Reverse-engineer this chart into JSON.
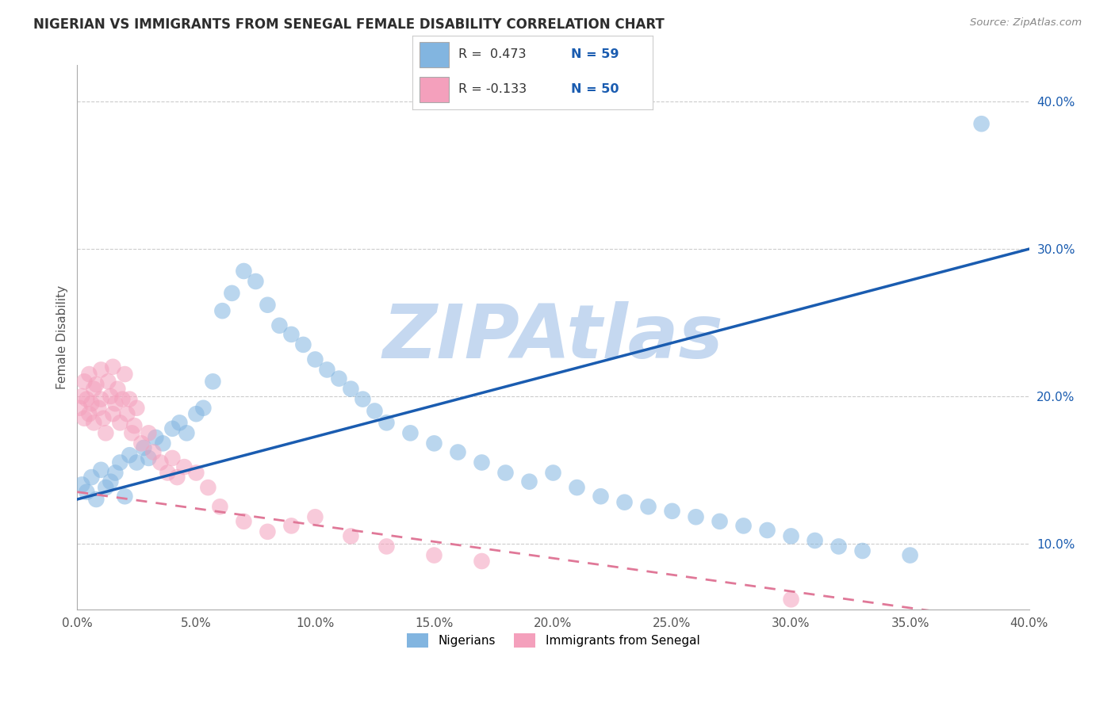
{
  "title": "NIGERIAN VS IMMIGRANTS FROM SENEGAL FEMALE DISABILITY CORRELATION CHART",
  "source_text": "Source: ZipAtlas.com",
  "ylabel": "Female Disability",
  "xlim": [
    0.0,
    0.4
  ],
  "ylim": [
    0.055,
    0.425
  ],
  "xtick_vals": [
    0.0,
    0.05,
    0.1,
    0.15,
    0.2,
    0.25,
    0.3,
    0.35,
    0.4
  ],
  "ytick_vals": [
    0.1,
    0.2,
    0.3,
    0.4
  ],
  "grid_color": "#cccccc",
  "bg_color": "#ffffff",
  "watermark": "ZIPAtlas",
  "watermark_color": "#c5d8f0",
  "blue_scatter": "#82b5e0",
  "pink_scatter": "#f4a0bc",
  "blue_line": "#1a5cb0",
  "pink_line": "#e07898",
  "label1": "Nigerians",
  "label2": "Immigrants from Senegal",
  "R1": "0.473",
  "N1": "59",
  "R2": "-0.133",
  "N2": "50",
  "legend_R_color": "#1a5cb0",
  "title_fontsize": 12,
  "tick_fontsize": 11,
  "nigerian_x": [
    0.002,
    0.004,
    0.006,
    0.008,
    0.01,
    0.012,
    0.014,
    0.016,
    0.018,
    0.02,
    0.022,
    0.025,
    0.028,
    0.03,
    0.033,
    0.036,
    0.04,
    0.043,
    0.046,
    0.05,
    0.053,
    0.057,
    0.061,
    0.065,
    0.07,
    0.075,
    0.08,
    0.085,
    0.09,
    0.095,
    0.1,
    0.105,
    0.11,
    0.115,
    0.12,
    0.125,
    0.13,
    0.14,
    0.15,
    0.16,
    0.17,
    0.18,
    0.19,
    0.2,
    0.21,
    0.22,
    0.23,
    0.24,
    0.25,
    0.26,
    0.27,
    0.28,
    0.29,
    0.3,
    0.31,
    0.32,
    0.33,
    0.35,
    0.38
  ],
  "nigerian_y": [
    0.14,
    0.135,
    0.145,
    0.13,
    0.15,
    0.138,
    0.142,
    0.148,
    0.155,
    0.132,
    0.16,
    0.155,
    0.165,
    0.158,
    0.172,
    0.168,
    0.178,
    0.182,
    0.175,
    0.188,
    0.192,
    0.21,
    0.258,
    0.27,
    0.285,
    0.278,
    0.262,
    0.248,
    0.242,
    0.235,
    0.225,
    0.218,
    0.212,
    0.205,
    0.198,
    0.19,
    0.182,
    0.175,
    0.168,
    0.162,
    0.155,
    0.148,
    0.142,
    0.148,
    0.138,
    0.132,
    0.128,
    0.125,
    0.122,
    0.118,
    0.115,
    0.112,
    0.109,
    0.105,
    0.102,
    0.098,
    0.095,
    0.092,
    0.385
  ],
  "senegal_x": [
    0.001,
    0.002,
    0.003,
    0.003,
    0.004,
    0.005,
    0.005,
    0.006,
    0.007,
    0.007,
    0.008,
    0.009,
    0.01,
    0.01,
    0.011,
    0.012,
    0.013,
    0.014,
    0.015,
    0.015,
    0.016,
    0.017,
    0.018,
    0.019,
    0.02,
    0.021,
    0.022,
    0.023,
    0.024,
    0.025,
    0.027,
    0.03,
    0.032,
    0.035,
    0.038,
    0.04,
    0.042,
    0.045,
    0.05,
    0.055,
    0.06,
    0.07,
    0.08,
    0.09,
    0.1,
    0.115,
    0.13,
    0.15,
    0.17,
    0.3
  ],
  "senegal_y": [
    0.192,
    0.2,
    0.185,
    0.21,
    0.198,
    0.188,
    0.215,
    0.195,
    0.205,
    0.182,
    0.208,
    0.192,
    0.198,
    0.218,
    0.185,
    0.175,
    0.21,
    0.2,
    0.22,
    0.188,
    0.195,
    0.205,
    0.182,
    0.198,
    0.215,
    0.188,
    0.198,
    0.175,
    0.18,
    0.192,
    0.168,
    0.175,
    0.162,
    0.155,
    0.148,
    0.158,
    0.145,
    0.152,
    0.148,
    0.138,
    0.125,
    0.115,
    0.108,
    0.112,
    0.118,
    0.105,
    0.098,
    0.092,
    0.088,
    0.062
  ]
}
